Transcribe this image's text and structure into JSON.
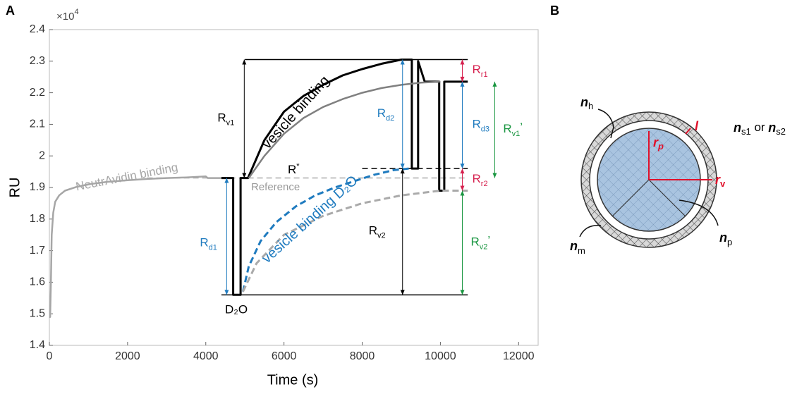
{
  "chart_data": {
    "type": "line",
    "panel": "A",
    "x_label": "Time (s)",
    "y_label": "RU",
    "y_multiplier": {
      "base": "×10",
      "exp": "4"
    },
    "xlim": [
      0,
      12500
    ],
    "xticks": [
      0,
      2000,
      4000,
      6000,
      8000,
      10000,
      12000
    ],
    "ylim": [
      1.4,
      2.4
    ],
    "yticks": [
      1.4,
      1.5,
      1.6,
      1.7,
      1.8,
      1.9,
      2,
      2.1,
      2.2,
      2.3,
      2.4
    ],
    "series": [
      {
        "name": "NeutrAvidin binding",
        "color": "#a6a6a6",
        "dashed": false,
        "x": [
          0,
          20,
          40,
          60,
          100,
          150,
          250,
          400,
          700,
          1000,
          1500,
          2000,
          2500,
          3000,
          3500,
          4000,
          4050,
          4600
        ],
        "values": [
          1.49,
          1.49,
          1.6,
          1.75,
          1.82,
          1.855,
          1.875,
          1.89,
          1.902,
          1.91,
          1.918,
          1.923,
          1.927,
          1.93,
          1.932,
          1.935,
          1.93,
          1.93
        ]
      },
      {
        "name": "vesicle binding",
        "color": "#000000",
        "dashed": false,
        "x": [
          4400,
          4700,
          4700,
          4890,
          4890,
          5080,
          5500,
          6000,
          6500,
          7000,
          7500,
          8000,
          8500,
          9000,
          9270,
          9270,
          9430,
          9430,
          9600,
          9970,
          9970,
          10100,
          10100,
          10700
        ],
        "values": [
          1.93,
          1.93,
          1.56,
          1.56,
          1.93,
          1.93,
          2.05,
          2.14,
          2.19,
          2.225,
          2.255,
          2.275,
          2.292,
          2.305,
          2.305,
          1.96,
          1.96,
          2.3,
          2.235,
          2.235,
          1.89,
          1.89,
          2.235,
          2.235
        ]
      },
      {
        "color": "#808080",
        "dashed": false,
        "x": [
          5100,
          5500,
          6000,
          6500,
          7000,
          7500,
          8000,
          8500,
          9000,
          9500,
          10000
        ],
        "values": [
          1.93,
          2.0,
          2.07,
          2.12,
          2.155,
          2.18,
          2.2,
          2.215,
          2.225,
          2.232,
          2.235
        ]
      },
      {
        "name": "vesicle binding D₂O",
        "color": "#1f7bbf",
        "dashed": true,
        "x": [
          4950,
          5100,
          5400,
          5800,
          6300,
          6800,
          7300,
          7800,
          8300,
          8800,
          9200
        ],
        "values": [
          1.57,
          1.65,
          1.73,
          1.79,
          1.84,
          1.875,
          1.9,
          1.92,
          1.94,
          1.955,
          1.96
        ]
      },
      {
        "color": "#aaaaaa",
        "dashed": true,
        "x": [
          4950,
          5300,
          6000,
          7000,
          8000,
          9000,
          10000,
          10700
        ],
        "values": [
          1.57,
          1.66,
          1.75,
          1.81,
          1.85,
          1.875,
          1.89,
          1.89
        ]
      }
    ],
    "levels": [
      {
        "x": [
          2500,
          10700
        ],
        "value": 1.93,
        "color": "#aaaaaa",
        "dashed": true
      },
      {
        "x": [
          8000,
          10700
        ],
        "value": 1.96,
        "color": "#000000",
        "dashed": true
      },
      {
        "x": [
          5000,
          10700
        ],
        "value": 2.305,
        "color": "#000000",
        "dashed": false
      },
      {
        "x": [
          4400,
          10700
        ],
        "value": 1.56,
        "color": "#000000",
        "dashed": false
      }
    ],
    "measurements": [
      {
        "label": "R",
        "sub": "v1",
        "x": 4984,
        "from": 1.93,
        "to": 2.305,
        "color": "#000000"
      },
      {
        "label": "R",
        "sub": "d1",
        "x": 4534,
        "from": 1.56,
        "to": 1.93,
        "color": "#1f7bbf"
      },
      {
        "label": "R",
        "sub": "d2",
        "x": 9032,
        "from": 1.96,
        "to": 2.305,
        "color": "#1f7bbf"
      },
      {
        "label": "R",
        "sub": "d3",
        "x": 10561,
        "from": 1.96,
        "to": 2.235,
        "color": "#1f7bbf"
      },
      {
        "label": "R",
        "sub": "r1",
        "x": 10561,
        "from": 2.235,
        "to": 2.305,
        "color": "#d6204e"
      },
      {
        "label": "R",
        "sub": "r2",
        "x": 10561,
        "from": 1.89,
        "to": 1.96,
        "color": "#d6204e"
      },
      {
        "label": "R",
        "sub": "v1",
        "suffix": "’",
        "x": 11389,
        "from": 1.93,
        "to": 2.235,
        "color": "#1a9641"
      },
      {
        "label": "R",
        "sub": "v2",
        "suffix": "’",
        "x": 10561,
        "from": 1.56,
        "to": 1.89,
        "color": "#1a9641"
      },
      {
        "label": "R",
        "sub": "v2",
        "x": 9032,
        "from": 1.56,
        "to": 1.96,
        "color": "#000000"
      }
    ],
    "annotations": {
      "r_star": {
        "text": "R",
        "sup": "*"
      },
      "reference": "Reference",
      "d2o": "D₂O"
    }
  },
  "panel_b": {
    "label": "B",
    "labels": {
      "nh": [
        "n",
        "h"
      ],
      "l": [
        "l"
      ],
      "rp": [
        "r",
        "p"
      ],
      "rv": [
        "r",
        "v"
      ],
      "ns": [
        "n",
        "s1",
        " or ",
        "n",
        "s2"
      ],
      "nm": [
        "n",
        "m"
      ],
      "np": [
        "n",
        "p"
      ]
    }
  }
}
